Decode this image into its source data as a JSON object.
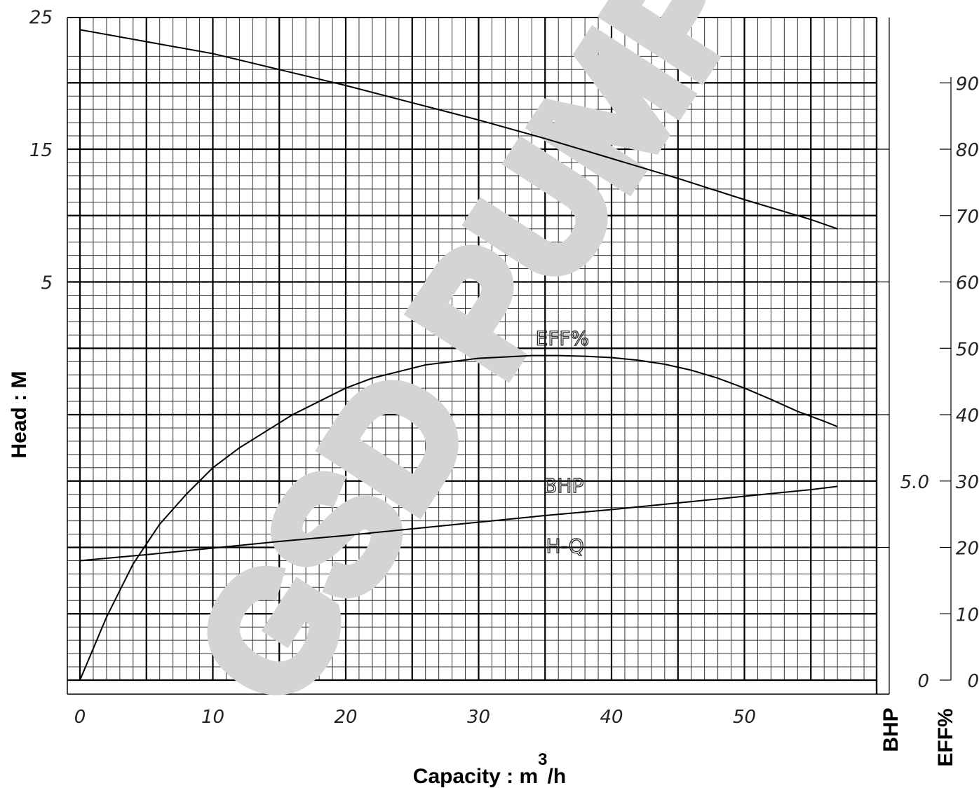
{
  "watermark": "GSD PUMP",
  "chart_data": {
    "type": "line",
    "title": "",
    "xlabel": "Capacity : m",
    "xlabel_superscript": "3",
    "xlabel_suffix": "/h",
    "ylabel": "Head : M",
    "right_axis_labels": [
      "BHP",
      "EFF%"
    ],
    "xlim": [
      0,
      60
    ],
    "x_ticks": [
      "0",
      "10",
      "20",
      "30",
      "40",
      "50"
    ],
    "head_axis": {
      "lim": [
        -25,
        25
      ],
      "ticks": [
        5,
        15,
        25
      ],
      "tick_labels": [
        "5",
        "15",
        "25"
      ]
    },
    "eff_axis": {
      "lim": [
        0,
        90
      ],
      "ticks": [
        0,
        10,
        20,
        30,
        40,
        50,
        60,
        70,
        80,
        90
      ],
      "tick_labels": [
        "0",
        "10",
        "20",
        "30",
        "40",
        "50",
        "60",
        "70",
        "80",
        "90"
      ]
    },
    "bhp_axis": {
      "ticks": [
        0,
        5.0
      ],
      "tick_labels": [
        "0",
        "5.0"
      ]
    },
    "grid": true,
    "series": [
      {
        "name": "H-Q",
        "axis": "head",
        "label_at": [
          36.5,
          19.2
        ],
        "points": [
          [
            0,
            24.0
          ],
          [
            5,
            23.1
          ],
          [
            10,
            22.2
          ],
          [
            15,
            21.0
          ],
          [
            20,
            19.8
          ],
          [
            25,
            18.5
          ],
          [
            30,
            17.2
          ],
          [
            35,
            15.8
          ],
          [
            40,
            14.3
          ],
          [
            45,
            12.8
          ],
          [
            50,
            11.2
          ],
          [
            55,
            9.7
          ],
          [
            57,
            9.0
          ]
        ]
      },
      {
        "name": "EFF%",
        "axis": "eff",
        "label_at": [
          36.3,
          50.5
        ],
        "points": [
          [
            0,
            0
          ],
          [
            2,
            9.5
          ],
          [
            4,
            17.5
          ],
          [
            6,
            23.5
          ],
          [
            8,
            28
          ],
          [
            10,
            32
          ],
          [
            12,
            35
          ],
          [
            14,
            37.5
          ],
          [
            16,
            40
          ],
          [
            18,
            42
          ],
          [
            20,
            44
          ],
          [
            22,
            45.5
          ],
          [
            24,
            46.5
          ],
          [
            26,
            47.5
          ],
          [
            28,
            48
          ],
          [
            30,
            48.5
          ],
          [
            32,
            48.7
          ],
          [
            34,
            48.9
          ],
          [
            36,
            48.9
          ],
          [
            38,
            48.8
          ],
          [
            40,
            48.6
          ],
          [
            42,
            48.2
          ],
          [
            44,
            47.6
          ],
          [
            46,
            46.7
          ],
          [
            48,
            45.5
          ],
          [
            50,
            44
          ],
          [
            52,
            42.3
          ],
          [
            54,
            40.5
          ],
          [
            56,
            39.0
          ],
          [
            57,
            38.2
          ]
        ]
      },
      {
        "name": "BHP",
        "axis": "eff",
        "label_at": [
          36.4,
          28.3
        ],
        "points": [
          [
            0,
            18.0
          ],
          [
            5,
            18.9
          ],
          [
            10,
            19.9
          ],
          [
            15,
            20.9
          ],
          [
            20,
            21.8
          ],
          [
            25,
            22.8
          ],
          [
            30,
            23.8
          ],
          [
            35,
            24.8
          ],
          [
            40,
            25.7
          ],
          [
            45,
            26.7
          ],
          [
            50,
            27.7
          ],
          [
            55,
            28.7
          ],
          [
            57,
            29.2
          ]
        ]
      }
    ]
  }
}
